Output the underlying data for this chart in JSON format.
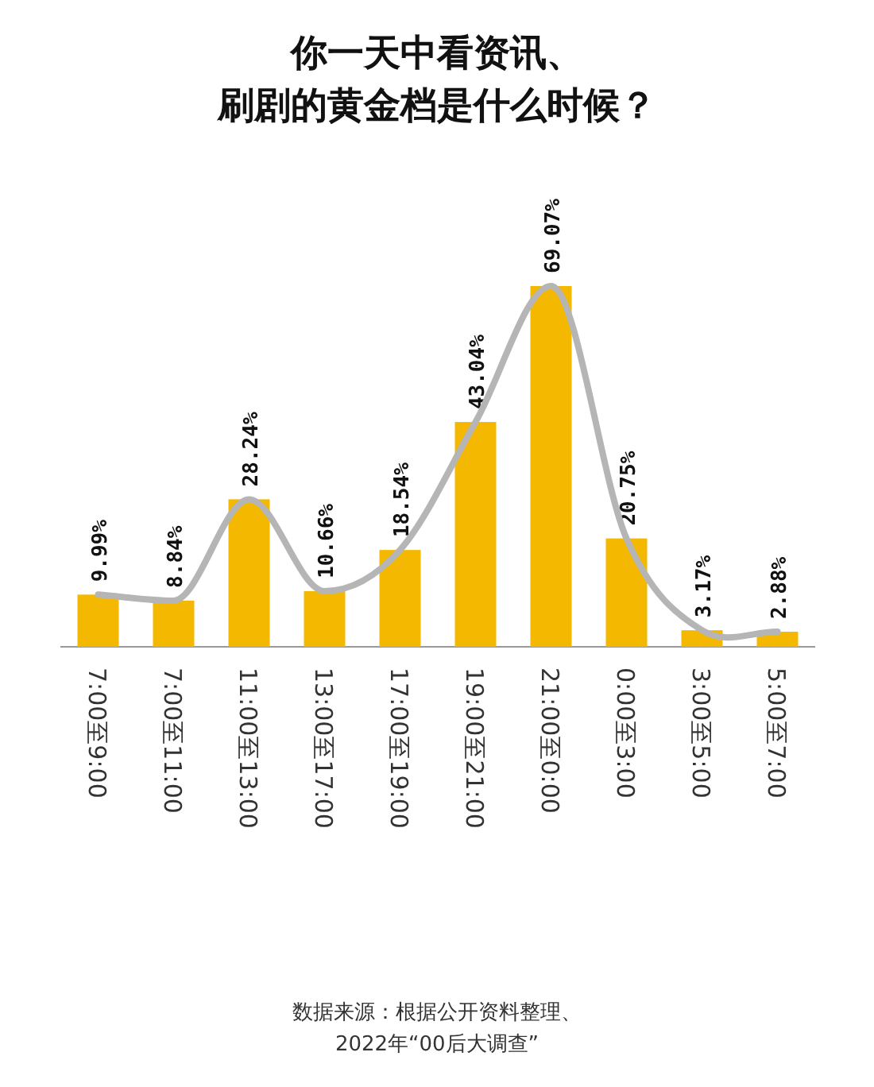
{
  "chart_data": {
    "type": "bar",
    "title": "你一天中看资讯、",
    "subtitle": "刷剧的黄金档是什么时候？",
    "categories": [
      "7:00至9:00",
      "7:00至11:00",
      "11:00至13:00",
      "13:00至17:00",
      "17:00至19:00",
      "19:00至21:00",
      "21:00至0:00",
      "0:00至3:00",
      "3:00至5:00",
      "5:00至7:00"
    ],
    "series": [
      {
        "color": "#f5b800",
        "values": [
          9.99,
          8.84,
          28.24,
          10.66,
          18.54,
          43.04,
          69.07,
          20.75,
          3.17,
          2.88
        ],
        "value_labels": [
          "9.99%",
          "8.84%",
          "28.24%",
          "10.66%",
          "18.54%",
          "43.04%",
          "69.07%",
          "20.75%",
          "3.17%",
          "2.88%"
        ]
      },
      {
        "type": "line",
        "color": "#b5b5b5",
        "values": [
          9.99,
          8.84,
          28.24,
          10.66,
          18.54,
          43.04,
          69.07,
          20.75,
          3.17,
          2.88
        ]
      }
    ],
    "marker": "none",
    "annotations": [
      "数据来源：根据公开资料整理、",
      "2022年“00后大调查”"
    ]
  }
}
